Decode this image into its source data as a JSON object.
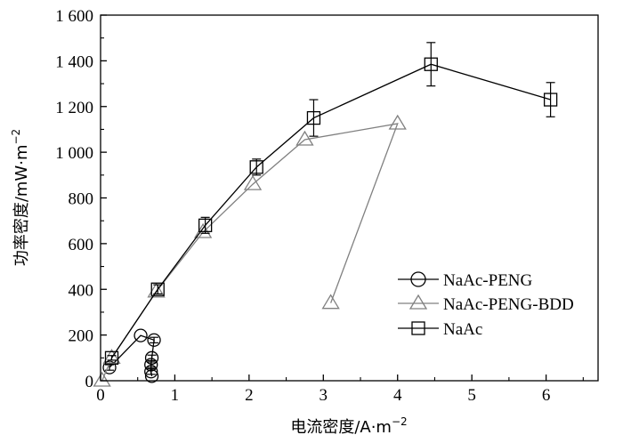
{
  "chart_data": {
    "type": "line",
    "xlabel": "电流密度/A·m",
    "xlabel_sup": "−2",
    "ylabel": "功率密度/mW·m",
    "ylabel_sup": "−2",
    "xlim": [
      0,
      6.7
    ],
    "ylim": [
      0,
      1600
    ],
    "x_ticks": [
      0,
      1,
      2,
      3,
      4,
      5,
      6
    ],
    "x_tick_labels": [
      "0",
      "1",
      "2",
      "3",
      "4",
      "5",
      "6"
    ],
    "y_ticks": [
      0,
      200,
      400,
      600,
      800,
      1000,
      1200,
      1400,
      1600
    ],
    "y_tick_labels": [
      "0",
      "200",
      "400",
      "600",
      "800",
      "1 000",
      "1 200",
      "1 400",
      "1 600"
    ],
    "grid": false,
    "legend_position": "bottom-right",
    "series": [
      {
        "name": "NaAc-PENG",
        "marker": "circle",
        "color": "#000000",
        "x": [
          0.12,
          0.54,
          0.72,
          0.69,
          0.68,
          0.68,
          0.69
        ],
        "y": [
          58,
          198,
          178,
          100,
          70,
          40,
          20
        ],
        "err": [
          12,
          0,
          12,
          12,
          12,
          12,
          0
        ]
      },
      {
        "name": "NaAc-PENG-BDD",
        "marker": "triangle",
        "color": "#808080",
        "x": [
          0.02,
          0.15,
          0.75,
          1.38,
          2.05,
          2.75,
          4.0,
          3.1
        ],
        "y": [
          0,
          100,
          390,
          650,
          860,
          1055,
          1125,
          340
        ],
        "err": [
          0,
          0,
          0,
          0,
          0,
          0,
          0,
          0
        ]
      },
      {
        "name": "NaAc",
        "marker": "square",
        "color": "#000000",
        "x": [
          0.15,
          0.77,
          1.41,
          2.1,
          2.87,
          4.45,
          6.06
        ],
        "y": [
          100,
          400,
          680,
          935,
          1150,
          1385,
          1230
        ],
        "err": [
          10,
          20,
          35,
          35,
          80,
          95,
          75
        ]
      }
    ]
  }
}
